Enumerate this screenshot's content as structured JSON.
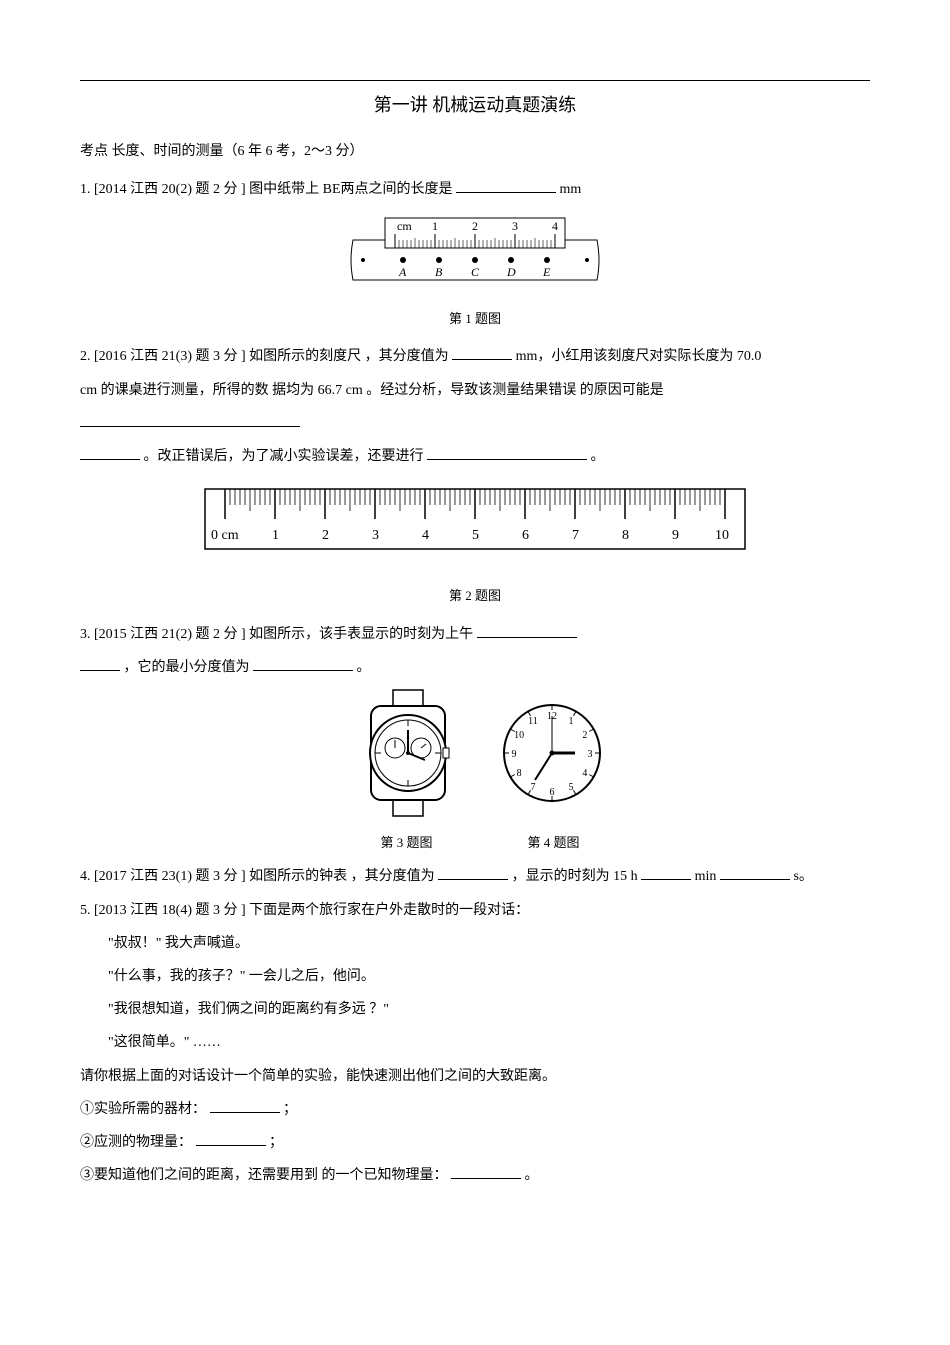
{
  "title": "第一讲  机械运动真题演练",
  "exam_point": "考点  长度、时间的测量（6 年 6 考，2～3 分）",
  "q1": {
    "text_a": "1. [2014  江西  20(2)  题 2 分 ] 图中纸带上   BE两点之间的长度是  ",
    "text_b": "mm",
    "caption": "第 1 题图",
    "ruler": {
      "labels": [
        "cm",
        "1",
        "2",
        "3",
        "4"
      ],
      "major_ticks": 5,
      "minor_per_major": 10,
      "stroke": "#000000",
      "bg": "#ffffff",
      "points": [
        "A",
        "B",
        "C",
        "D",
        "E"
      ],
      "dot_radius": 3
    }
  },
  "q2": {
    "text_a": "2. [2016  江西  21(3)  题 3 分 ] 如图所示的刻度尺  ，其分度值为 ",
    "text_b": "mm，小红用该刻度尺对实际长度为    70.0",
    "text_c": "cm  的课桌进行测量，所得的数     据均为   66.7 cm 。经过分析，导致该测量结果错误      的原因可能是",
    "text_d": "。改正错误后，为了减小实验误差，还要进行     ",
    "text_e": "。",
    "caption": "第 2 题图",
    "ruler": {
      "labels": [
        "0 cm",
        "1",
        "2",
        "3",
        "4",
        "5",
        "6",
        "7",
        "8",
        "9",
        "10"
      ],
      "stroke": "#000000",
      "bg": "#ffffff",
      "minor_per_major": 10
    }
  },
  "q3": {
    "text_a": "3.  [2015  江西  21(2)  题 2 分 ] 如图所示，该手表显示的时刻为上午   ",
    "text_b": "，它的最小分度值为  ",
    "text_c": "。",
    "caption": "第 3 题图",
    "watch": {
      "stroke": "#000000",
      "bg": "#ffffff"
    }
  },
  "q4": {
    "text_a": "4.  [2017  江西 23(1)  题 3 分 ] 如图所示的钟表  ，其分度值为 ",
    "text_b": "，显示的时刻为   15 h",
    "text_c": "min",
    "text_d": "s。",
    "caption": "第 4 题图",
    "clock": {
      "numbers": [
        "12",
        "1",
        "2",
        "3",
        "4",
        "5",
        "6",
        "7",
        "8",
        "9",
        "10",
        "11"
      ],
      "hour_hand_angle": 90,
      "minute_hand_angle": 210,
      "second_hand_angle": 0,
      "stroke": "#000000",
      "bg": "#ffffff"
    }
  },
  "q5": {
    "intro": "5.  [2013  江西  18(4)  题 3 分 ]  下面是两个旅行家在户外走散时的一段对话：",
    "line1": "\"叔叔！\" 我大声喊道。",
    "line2": "\"什么事，我的孩子？\" 一会儿之后，他问。",
    "line3": "\"我很想知道，我们俩之间的距离约有多远     ？\"",
    "line4": "\"这很简单。\" ……",
    "task": "请你根据上面的对话设计一个简单的实验，能快速测出他们之间的大致距离。",
    "i1a": "①实验所需的器材：   ",
    "i1b": "；",
    "i2a": "②应测的物理量：   ",
    "i2b": "；",
    "i3a": "③要知道他们之间的距离，还需要用到    的一个已知物理量：   ",
    "i3b": "。"
  }
}
